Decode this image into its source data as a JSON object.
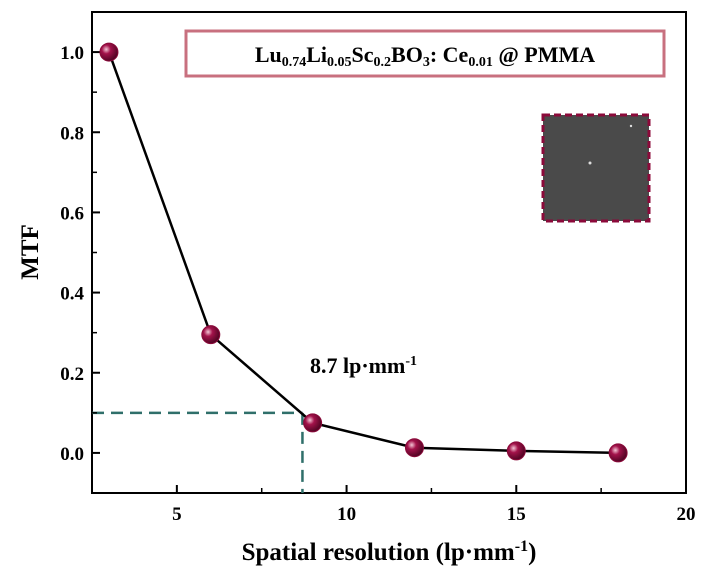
{
  "chart_data": {
    "type": "line",
    "title_parts": [
      {
        "text": "Lu"
      },
      {
        "text": "0.74",
        "sub": true
      },
      {
        "text": "Li"
      },
      {
        "text": "0.05",
        "sub": true
      },
      {
        "text": "Sc"
      },
      {
        "text": "0.2",
        "sub": true
      },
      {
        "text": "BO"
      },
      {
        "text": "3",
        "sub": true
      },
      {
        "text": ": Ce"
      },
      {
        "text": "0.01",
        "sub": true
      },
      {
        "text": " @ PMMA"
      }
    ],
    "x_label_parts": [
      {
        "text": "Spatial resolution (lp·mm"
      },
      {
        "text": "-1",
        "sup": true
      },
      {
        "text": ")"
      }
    ],
    "y_label": "MTF",
    "annotation_parts": [
      {
        "text": "8.7 lp·mm"
      },
      {
        "text": "-1",
        "sup": true
      }
    ],
    "x": [
      3,
      6,
      9,
      12,
      15,
      18
    ],
    "series": [
      {
        "color": "#8b0a3a",
        "values": [
          1.0,
          0.295,
          0.075,
          0.013,
          0.005,
          0.0
        ]
      }
    ],
    "threshold": {
      "x": 8.7,
      "y": 0.1,
      "color": "#2f6f6a"
    },
    "xlim": [
      2.5,
      20
    ],
    "ylim": [
      -0.1,
      1.1
    ],
    "xticks": [
      5,
      10,
      15,
      20
    ],
    "yticks": [
      {
        "value": 0,
        "label": "0.0"
      },
      {
        "value": 0.2,
        "label": "0.2"
      },
      {
        "value": 0.4,
        "label": "0.4"
      },
      {
        "value": 0.6,
        "label": "0.6"
      },
      {
        "value": 0.8,
        "label": "0.8"
      },
      {
        "value": 1.0,
        "label": "1.0"
      }
    ]
  }
}
